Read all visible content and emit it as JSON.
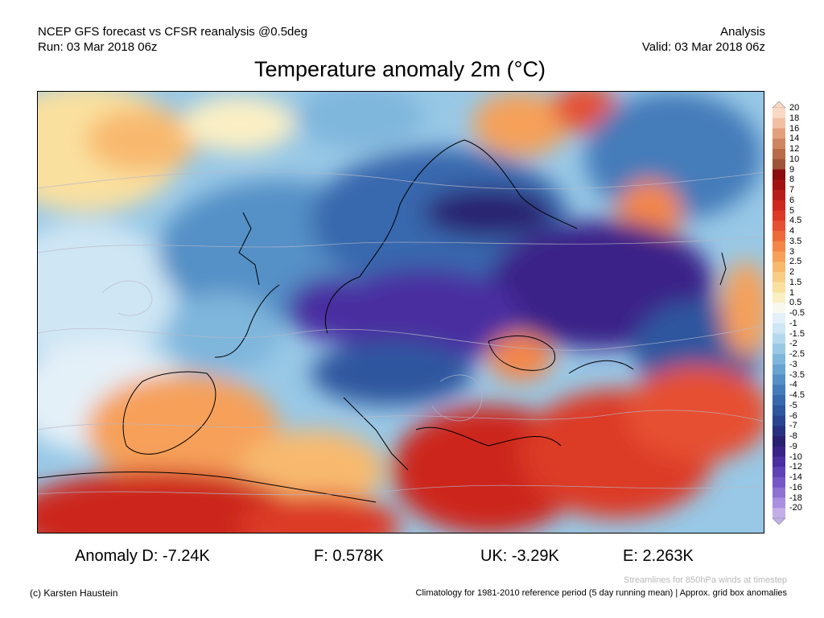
{
  "header": {
    "line1_left": "NCEP GFS forecast vs CFSR reanalysis @0.5deg",
    "line2_left": "Run: 03 Mar 2018 06z",
    "line1_right": "Analysis",
    "line2_right": "Valid: 03 Mar 2018 06z"
  },
  "title": "Temperature anomaly 2m (°C)",
  "colorbar": {
    "labels": [
      "20",
      "18",
      "16",
      "14",
      "12",
      "10",
      "9",
      "8",
      "7",
      "6",
      "5",
      "4.5",
      "4",
      "3.5",
      "3",
      "2.5",
      "2",
      "1.5",
      "1",
      "0.5",
      "-0.5",
      "-1",
      "-1.5",
      "-2",
      "-2.5",
      "-3",
      "-3.5",
      "-4",
      "-4.5",
      "-5",
      "-6",
      "-7",
      "-8",
      "-9",
      "-10",
      "-12",
      "-14",
      "-16",
      "-18",
      "-20"
    ],
    "colors": [
      "#f9d8c4",
      "#f2bfa2",
      "#e3a07d",
      "#cf8461",
      "#b86a49",
      "#9e5437",
      "#8b0d0d",
      "#a11313",
      "#b81c18",
      "#cc271e",
      "#dc3a26",
      "#e65033",
      "#ee6a3c",
      "#f48649",
      "#f6a05a",
      "#f8b96e",
      "#f9cd85",
      "#fae09f",
      "#fbefc4",
      "#f8f8f0",
      "#e4f0f8",
      "#cfe6f4",
      "#b4d8ee",
      "#98c8e6",
      "#7fb6dc",
      "#68a4d1",
      "#5490c6",
      "#447bba",
      "#3868ad",
      "#2e579f",
      "#2a4590",
      "#283280",
      "#2a2070",
      "#3a2388",
      "#4a2fa0",
      "#5e42b6",
      "#7558c6",
      "#8d72d4",
      "#a88fe0",
      "#c3aeea"
    ]
  },
  "stats": {
    "d": "Anomaly D: -7.24K",
    "f": "F: 0.578K",
    "uk": "UK: -3.29K",
    "e": "E: 2.263K"
  },
  "footer": {
    "streamlines_note": "Streamlines for 850hPa winds at timestep",
    "credit": "(c) Karsten Haustein",
    "climatology": "Climatology for 1981-2010 reference period (5 day running mean) | Approx. grid box anomalies"
  }
}
